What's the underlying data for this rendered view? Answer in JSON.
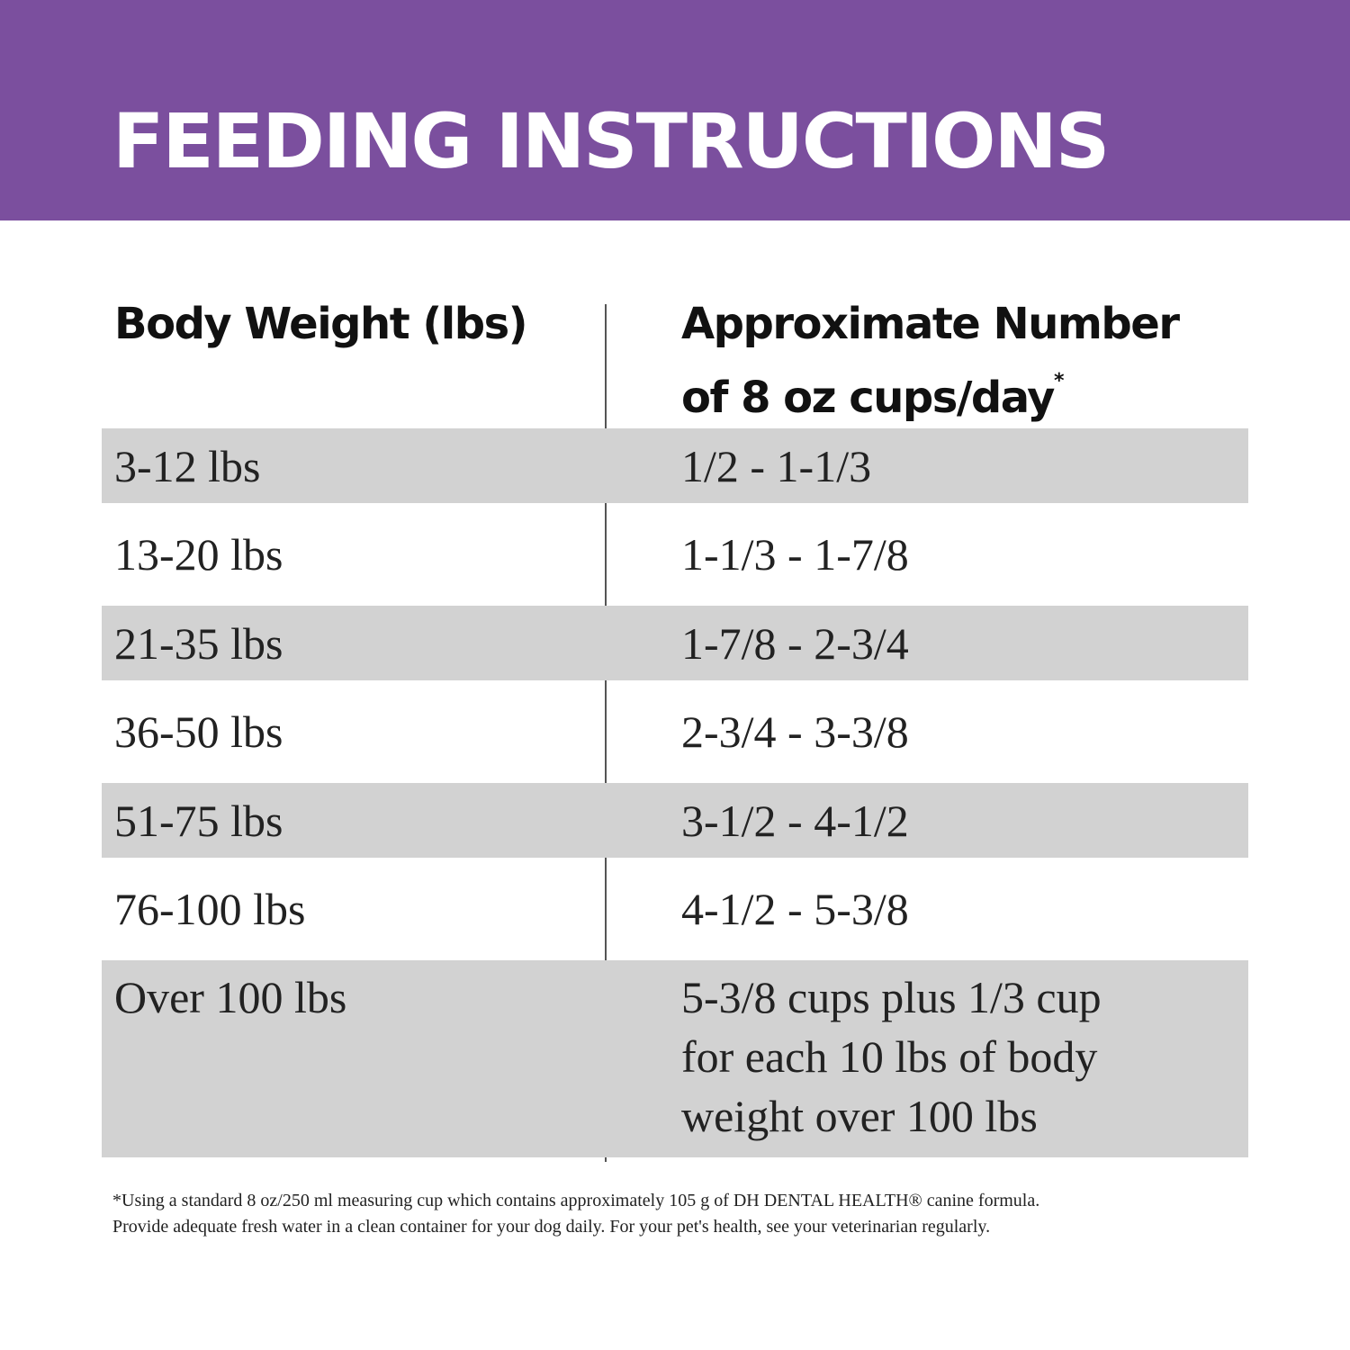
{
  "header": {
    "title": "FEEDING INSTRUCTIONS"
  },
  "table": {
    "columns": [
      {
        "lines": [
          "Body Weight (lbs)"
        ]
      },
      {
        "lines": [
          "Approximate Number",
          "of 8 oz cups/day"
        ],
        "note_mark": "*"
      }
    ],
    "rows": [
      [
        [
          "3-12 lbs"
        ],
        [
          "1/2 - 1-1/3"
        ]
      ],
      [
        [
          "13-20 lbs"
        ],
        [
          "1-1/3 - 1-7/8"
        ]
      ],
      [
        [
          "21-35 lbs"
        ],
        [
          "1-7/8 - 2-3/4"
        ]
      ],
      [
        [
          "36-50 lbs"
        ],
        [
          "2-3/4 - 3-3/8"
        ]
      ],
      [
        [
          "51-75 lbs"
        ],
        [
          "3-1/2 - 4-1/2"
        ]
      ],
      [
        [
          "76-100 lbs"
        ],
        [
          "4-1/2 - 5-3/8"
        ]
      ],
      [
        [
          "Over 100 lbs"
        ],
        [
          "5-3/8 cups plus 1/3 cup",
          "for each 10 lbs of body",
          "weight over 100 lbs"
        ]
      ]
    ]
  },
  "footnote": {
    "lines": [
      "*Using a standard 8 oz/250 ml measuring cup which contains approximately 105 g of DH DENTAL HEALTH® canine formula.",
      "Provide adequate fresh water in a clean container for your dog daily. For your pet's health, see your veterinarian regularly."
    ]
  }
}
